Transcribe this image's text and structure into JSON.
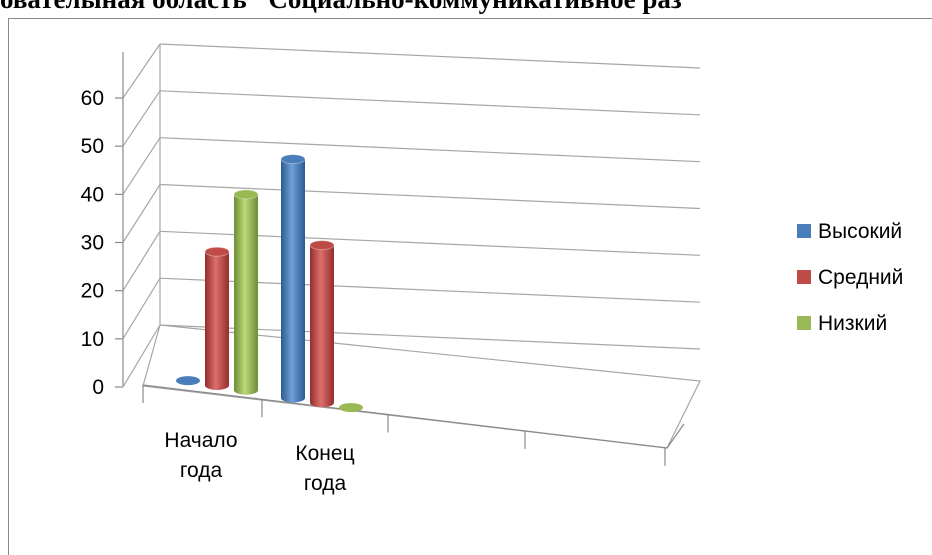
{
  "heading_fragment": "ователыная область \"Социально-коммуникативное раз",
  "chart_data": {
    "type": "bar",
    "style": "3d-cylinder",
    "categories": [
      "Начало года",
      "Конец года"
    ],
    "category_lines": [
      [
        "Начало",
        "года"
      ],
      [
        "Конец",
        "года"
      ]
    ],
    "series": [
      {
        "name": "Высокий",
        "values": [
          0,
          50
        ],
        "color": "#4a7ebb"
      },
      {
        "name": "Средний",
        "values": [
          28,
          33
        ],
        "color": "#be4b48"
      },
      {
        "name": "Низкий",
        "values": [
          41,
          0
        ],
        "color": "#98b954"
      }
    ],
    "ylim": [
      0,
      60
    ],
    "yticks": [
      0,
      10,
      20,
      30,
      40,
      50,
      60
    ],
    "grid": true,
    "legend_position": "right"
  }
}
